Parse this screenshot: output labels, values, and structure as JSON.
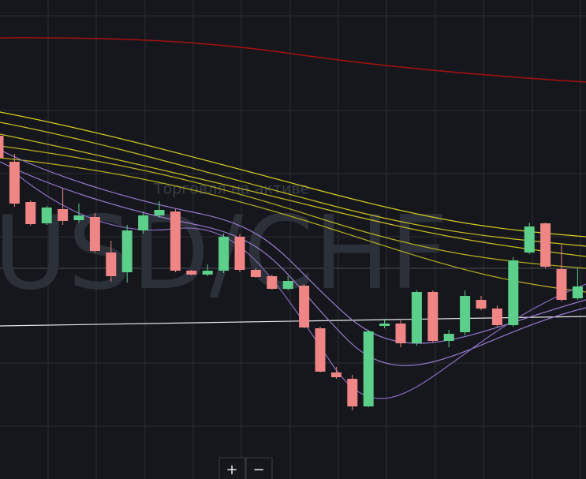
{
  "chart_data": {
    "type": "candlestick",
    "watermark": "USD/CHF",
    "subtitle": "Торговля на активе",
    "up_color": "#5ccf8a",
    "down_color": "#ef8585",
    "ylim": [
      0,
      607
    ],
    "categories": [
      null,
      null,
      null,
      null,
      null,
      null,
      null,
      null,
      null,
      null,
      null,
      null,
      null,
      null,
      null,
      null,
      null,
      null,
      null,
      null,
      null,
      null,
      null,
      null,
      null,
      null,
      null,
      null,
      null,
      null,
      null,
      null,
      null,
      null,
      null,
      null,
      null
    ],
    "open": [
      435,
      402,
      351,
      324,
      342,
      328,
      332,
      287,
      262,
      315,
      334,
      339,
      264,
      259,
      264,
      307,
      265,
      257,
      241,
      245,
      191,
      135,
      127,
      92,
      194,
      197,
      172,
      237,
      175,
      186,
      227,
      216,
      195,
      287,
      324,
      266,
      229
    ],
    "high": [
      439,
      412,
      353,
      346,
      369,
      349,
      337,
      302,
      322,
      339,
      352,
      342,
      265,
      272,
      311,
      311,
      267,
      259,
      257,
      247,
      193,
      142,
      132,
      189,
      203,
      201,
      239,
      239,
      189,
      239,
      232,
      220,
      281,
      325,
      325,
      297,
      267
    ],
    "low": [
      405,
      345,
      321,
      322,
      322,
      325,
      287,
      250,
      249,
      311,
      331,
      262,
      258,
      257,
      261,
      262,
      255,
      240,
      239,
      191,
      135,
      127,
      87,
      91,
      191,
      167,
      169,
      173,
      167,
      182,
      214,
      192,
      193,
      285,
      267,
      225,
      227
    ],
    "close": [
      407,
      349,
      323,
      344,
      327,
      334,
      289,
      257,
      315,
      334,
      341,
      264,
      259,
      264,
      307,
      265,
      256,
      241,
      251,
      192,
      136,
      129,
      92,
      187,
      197,
      172,
      237,
      175,
      184,
      232,
      216,
      195,
      277,
      320,
      269,
      227,
      244
    ]
  },
  "controls": {
    "zoom_in": "+",
    "zoom_out": "−"
  }
}
